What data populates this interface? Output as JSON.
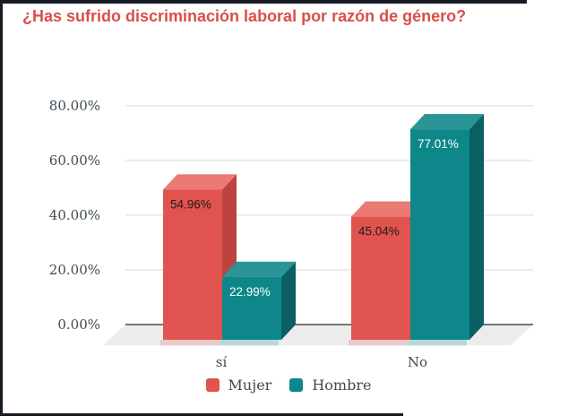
{
  "frame": {
    "color": "#171c24"
  },
  "title": {
    "text": "¿Has sufrido discriminación laboral por razón de género?",
    "color": "#d94f4b"
  },
  "chart_data": {
    "type": "bar",
    "style": "3d-grouped",
    "title": "¿Has sufrido discriminación laboral por razón de género?",
    "categories": [
      "sí",
      "No"
    ],
    "series": [
      {
        "name": "Mujer",
        "values": [
          54.96,
          45.04
        ],
        "labels": [
          "54.96%",
          "45.04%"
        ],
        "color": "#e1534e",
        "color_top": "#ea7a73",
        "color_side": "#bc4340",
        "label_color": "#1d1d1d"
      },
      {
        "name": "Hombre",
        "values": [
          22.99,
          77.01
        ],
        "labels": [
          "22.99%",
          "77.01%"
        ],
        "color": "#0e878a",
        "color_top": "#2a9496",
        "color_side": "#0a5f63",
        "label_color": "#ffffff"
      }
    ],
    "xlabel": "",
    "ylabel": "",
    "ylim": [
      0,
      80
    ],
    "y_ticks": [
      {
        "label": "0.00%",
        "value": 0
      },
      {
        "label": "20.00%",
        "value": 20
      },
      {
        "label": "40.00%",
        "value": 40
      },
      {
        "label": "60.00%",
        "value": 60
      },
      {
        "label": "80.00%",
        "value": 80
      }
    ],
    "grid": true,
    "legend_position": "bottom",
    "axis_text_color": "#3e4b54",
    "gridline_color": "#d9d9d9",
    "axisline_color": "#4a4a4a",
    "floor_color": "#ececec"
  }
}
